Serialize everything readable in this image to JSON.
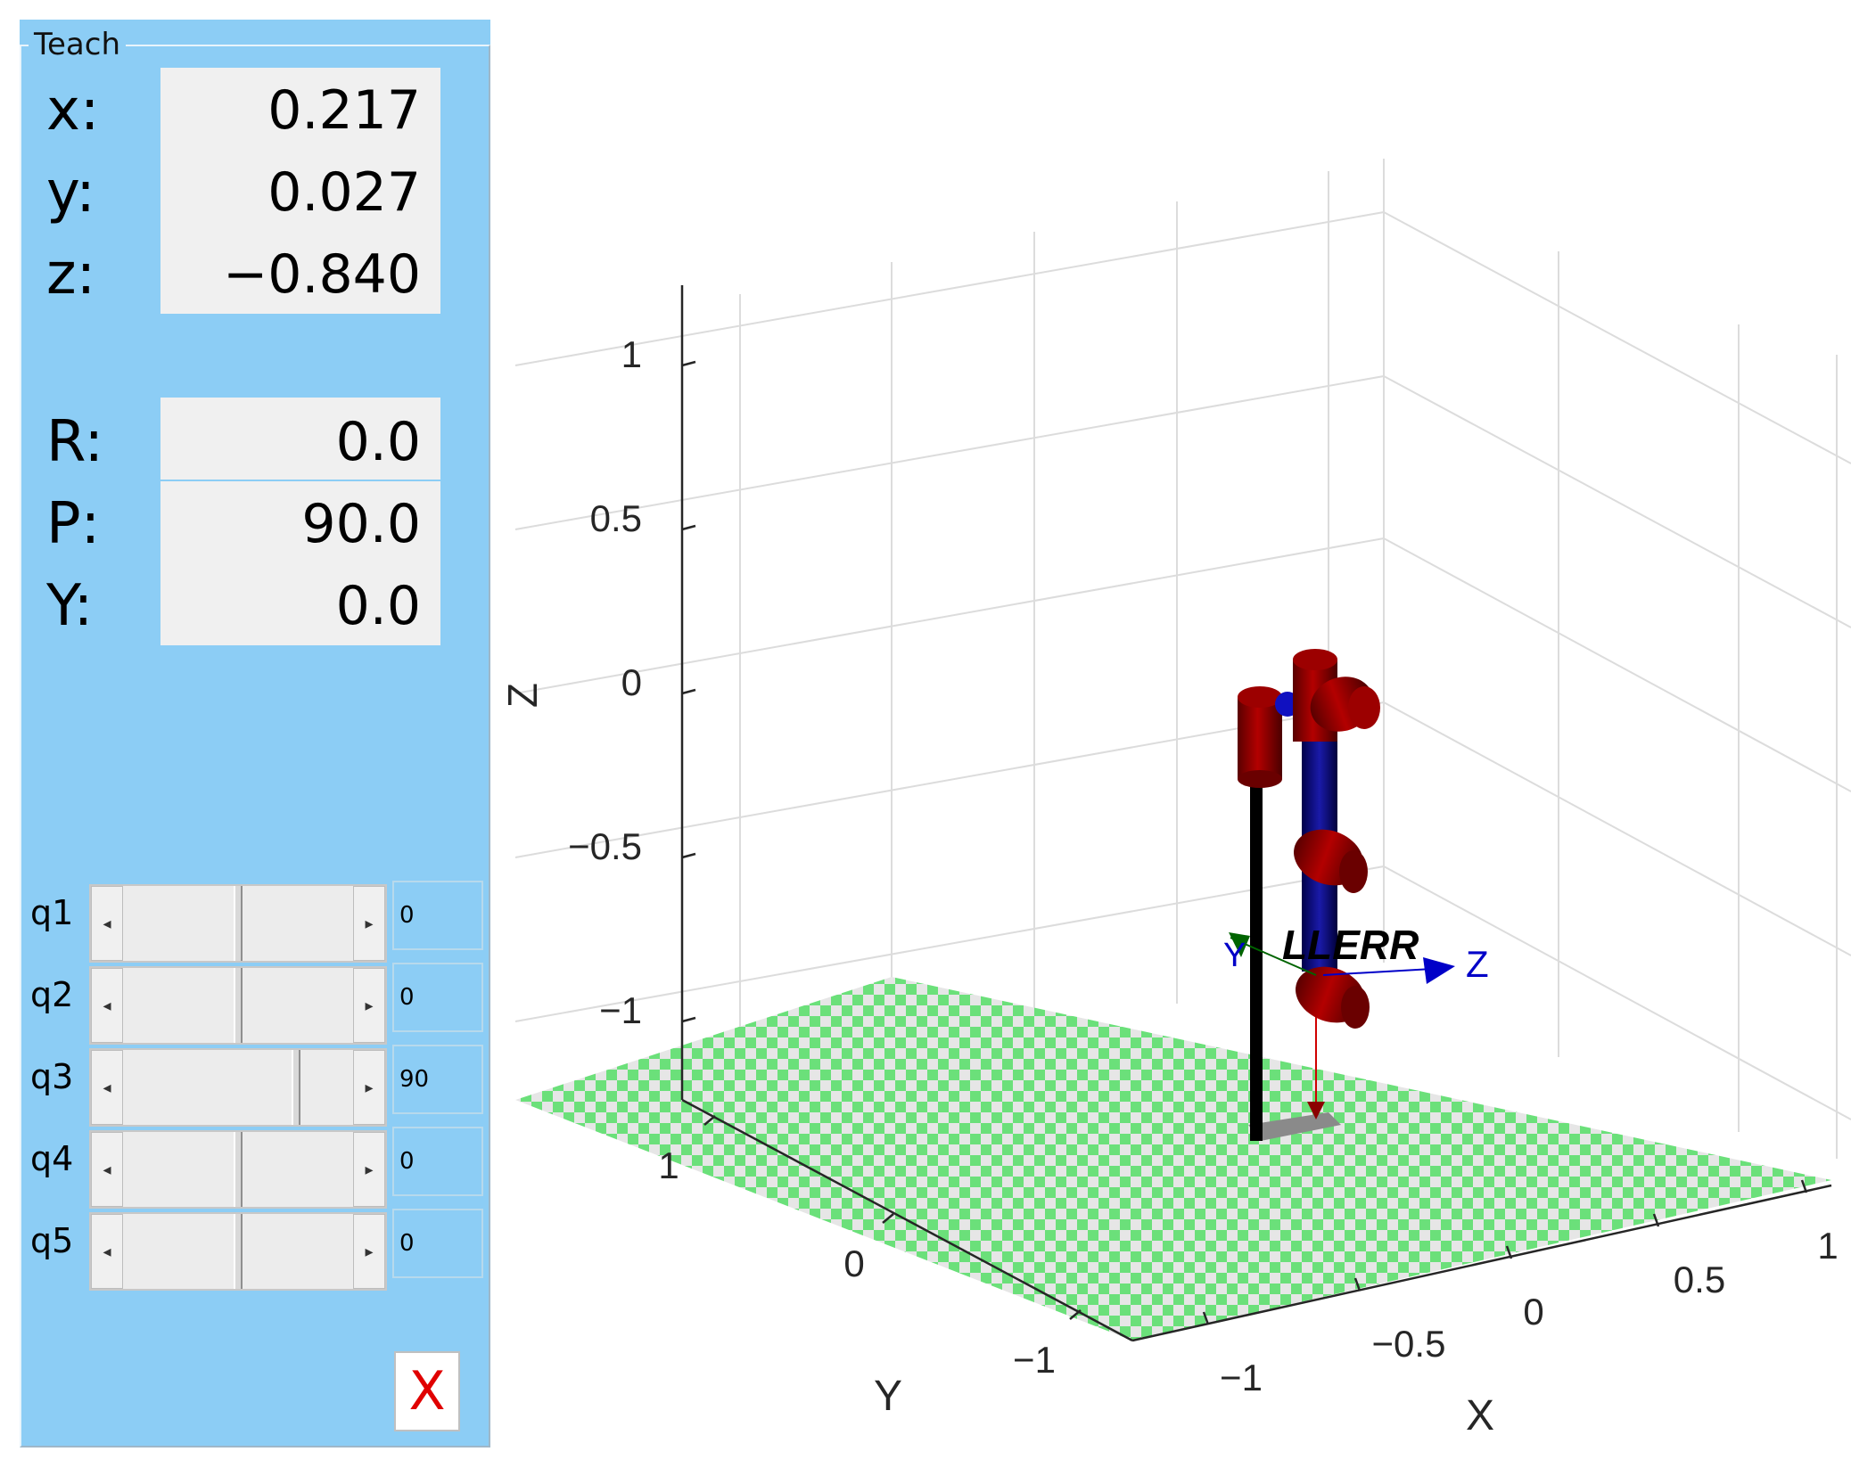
{
  "panel": {
    "title": "Teach",
    "coords": [
      {
        "label": "x:",
        "value": "0.217"
      },
      {
        "label": "y:",
        "value": "0.027"
      },
      {
        "label": "z:",
        "value": "−0.840"
      }
    ],
    "orient": [
      {
        "label": "R:",
        "value": "0.0"
      },
      {
        "label": "P:",
        "value": "90.0"
      },
      {
        "label": "Y:",
        "value": "0.0"
      }
    ],
    "joints": [
      {
        "label": "q1",
        "value": "0",
        "fraction": 0.5
      },
      {
        "label": "q2",
        "value": "0",
        "fraction": 0.5
      },
      {
        "label": "q3",
        "value": "90",
        "fraction": 0.75
      },
      {
        "label": "q4",
        "value": "0",
        "fraction": 0.5
      },
      {
        "label": "q5",
        "value": "0",
        "fraction": 0.5
      }
    ],
    "close_label": "X"
  },
  "plot": {
    "z_ticks": [
      "1",
      "0.5",
      "0",
      "−0.5",
      "−1"
    ],
    "x_ticks": [
      "−1",
      "−0.5",
      "0",
      "0.5",
      "1"
    ],
    "y_ticks": [
      "1",
      "0",
      "−1"
    ],
    "xlabel": "X",
    "ylabel": "Y",
    "zlabel": "Z",
    "robot_name": "LLERR",
    "frame_axis_y": "Y",
    "frame_axis_z": "Z",
    "colors": {
      "floor_green": "#6be07a",
      "floor_grey": "#e6e6e6",
      "link": "#000080",
      "joint": "#8b0000"
    }
  }
}
